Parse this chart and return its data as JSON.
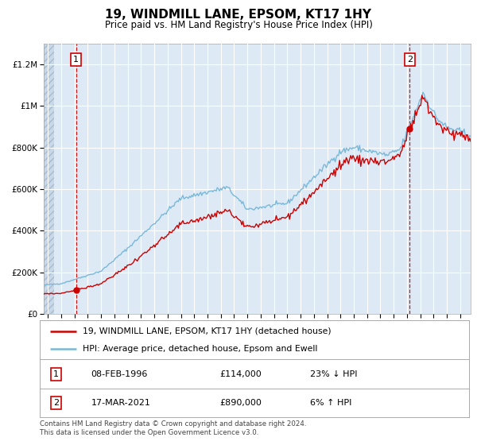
{
  "title": "19, WINDMILL LANE, EPSOM, KT17 1HY",
  "subtitle": "Price paid vs. HM Land Registry's House Price Index (HPI)",
  "footer": "Contains HM Land Registry data © Crown copyright and database right 2024.\nThis data is licensed under the Open Government Licence v3.0.",
  "legend_line1": "19, WINDMILL LANE, EPSOM, KT17 1HY (detached house)",
  "legend_line2": "HPI: Average price, detached house, Epsom and Ewell",
  "sale1_label": "1",
  "sale1_date": "08-FEB-1996",
  "sale1_price": "£114,000",
  "sale1_hpi": "23% ↓ HPI",
  "sale1_year": 1996.11,
  "sale1_value": 114000,
  "sale2_label": "2",
  "sale2_date": "17-MAR-2021",
  "sale2_price": "£890,000",
  "sale2_hpi": "6% ↑ HPI",
  "sale2_year": 2021.21,
  "sale2_value": 890000,
  "hpi_color": "#7ab8d9",
  "price_color": "#cc0000",
  "bg_color": "#ddeaf5",
  "grid_color": "#ffffff",
  "hatch_bg": "#c8d8e8",
  "ylim": [
    0,
    1300000
  ],
  "xlim_start": 1993.7,
  "xlim_end": 2025.8,
  "ytick_vals": [
    0,
    200000,
    400000,
    600000,
    800000,
    1000000,
    1200000
  ],
  "ytick_labels": [
    "£0",
    "£200K",
    "£400K",
    "£600K",
    "£800K",
    "£1M",
    "£1.2M"
  ],
  "xtick_start": 1994,
  "xtick_end": 2025
}
